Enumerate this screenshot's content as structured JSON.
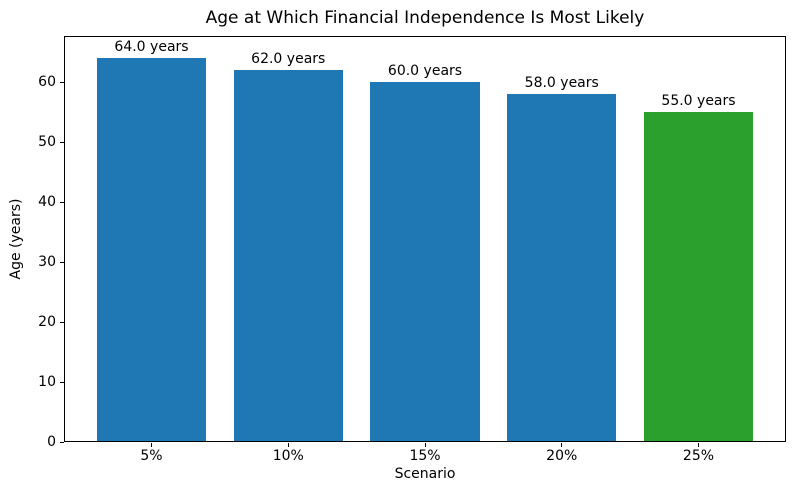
{
  "chart_data": {
    "type": "bar",
    "title": "Age at Which Financial Independence Is Most Likely",
    "xlabel": "Scenario",
    "ylabel": "Age (years)",
    "categories": [
      "5%",
      "10%",
      "15%",
      "20%",
      "25%"
    ],
    "values": [
      64.0,
      62.0,
      60.0,
      58.0,
      55.0
    ],
    "bar_labels": [
      "64.0 years",
      "62.0 years",
      "60.0 years",
      "58.0 years",
      "55.0 years"
    ],
    "bar_colors": [
      "#1f77b4",
      "#1f77b4",
      "#1f77b4",
      "#1f77b4",
      "#2ca02c"
    ],
    "ylim": [
      0,
      67.7
    ],
    "yticks": [
      0,
      10,
      20,
      30,
      40,
      50,
      60
    ],
    "grid": false,
    "legend": "none",
    "colors": {
      "default_bar": "#1f77b4",
      "highlight_bar": "#2ca02c",
      "spine": "#000000",
      "background": "#ffffff",
      "text": "#000000"
    }
  }
}
